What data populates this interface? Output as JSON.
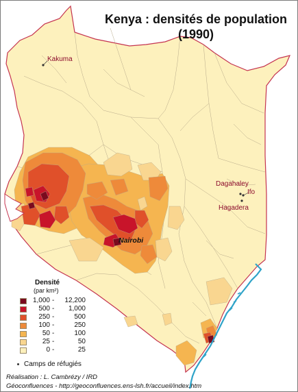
{
  "title": {
    "line1": "Kenya : densités de population",
    "line2": "(1990)"
  },
  "places": {
    "kakuma": "Kakuma",
    "dagahaley": "Dagahaley",
    "ifo": "Ifo",
    "hagadera": "Hagadera",
    "nairobi": "Nairobi"
  },
  "legend": {
    "title": "Densité",
    "unit": "(par km²)",
    "classes": [
      {
        "low": "1,000",
        "high": "12,200",
        "color": "#7a0a1e"
      },
      {
        "low": "500",
        "high": "1,000",
        "color": "#c8142a"
      },
      {
        "low": "250",
        "high": "500",
        "color": "#e0502a"
      },
      {
        "low": "100",
        "high": "250",
        "color": "#ee8a3a"
      },
      {
        "low": "50",
        "high": "100",
        "color": "#f5b550"
      },
      {
        "low": "25",
        "high": "50",
        "color": "#f9d690"
      },
      {
        "low": "0",
        "high": "25",
        "color": "#fdf1bd"
      }
    ],
    "camp_label": "Camps de réfugiés"
  },
  "credits": {
    "line1": "Réalisation : L. Cambrézy / IRD",
    "line2": "Géoconfluences - http://geoconfluences.ens-lsh.fr/accueil/index.htm"
  },
  "colors": {
    "border": "#c4334f",
    "ocean": "#2fa3c8",
    "district_line": "#b8aa8a",
    "land_low": "#fdf1bd"
  },
  "icons": {
    "refugee_camp": "camp-dot-icon"
  }
}
